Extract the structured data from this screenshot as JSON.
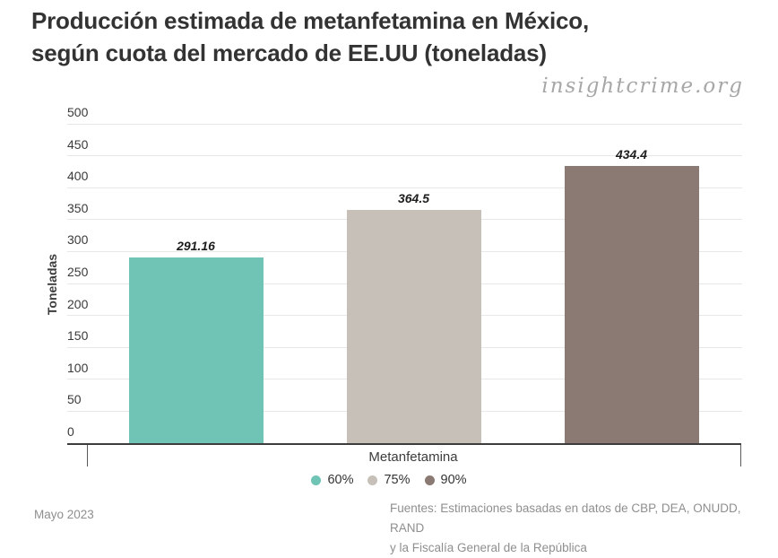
{
  "title": {
    "line1": "Producción estimada de metanfetamina en México,",
    "line2": "según cuota del mercado de EE.UU (toneladas)"
  },
  "watermark": "insightcrime.org",
  "chart_data": {
    "type": "bar",
    "title": "Producción estimada de metanfetamina en México, según cuota del mercado de EE.UU (toneladas)",
    "categories": [
      "Metanfetamina"
    ],
    "series": [
      {
        "name": "60%",
        "values": [
          291.16
        ],
        "color": "#6fc4b5"
      },
      {
        "name": "75%",
        "values": [
          364.5
        ],
        "color": "#c6c0b9"
      },
      {
        "name": "90%",
        "values": [
          434.4
        ],
        "color": "#8b7a74"
      }
    ],
    "xlabel": "Metanfetamina",
    "ylabel": "Toneladas",
    "ylim": [
      0,
      500
    ],
    "yticks": [
      0,
      50,
      100,
      150,
      200,
      250,
      300,
      350,
      400,
      450,
      500
    ],
    "grid": true,
    "legend_position": "bottom",
    "value_labels": [
      "291.16",
      "364.5",
      "434.4"
    ]
  },
  "footer": {
    "date": "Mayo 2023",
    "sources_line1": "Fuentes: Estimaciones basadas en datos de CBP, DEA, ONUDD, RAND",
    "sources_line2": "y la Fiscalía General de la República"
  }
}
